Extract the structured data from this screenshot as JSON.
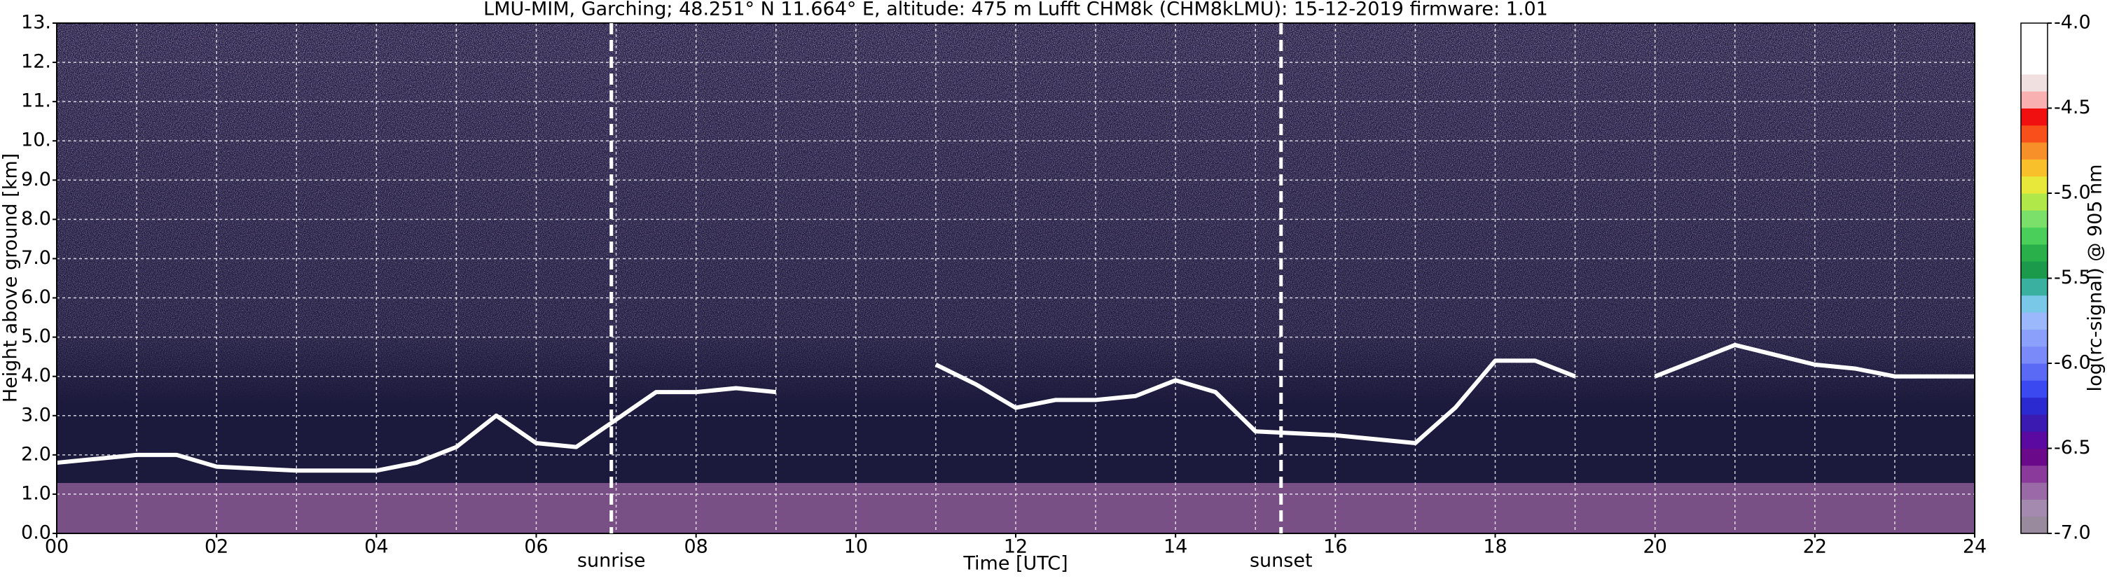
{
  "chart_data": {
    "type": "ceilometer",
    "title": "LMU-MIM, Garching; 48.251° N 11.664° E, altitude: 475 m    Lufft CHM8k (CHM8kLMU): 15-12-2019    firmware: 1.01",
    "x_label": "Time [UTC]",
    "y_label": "Height above ground [km]",
    "xlim": [
      0,
      24
    ],
    "xticks": [
      {
        "value": 0,
        "label": "00"
      },
      {
        "value": 2,
        "label": "02"
      },
      {
        "value": 4,
        "label": "04"
      },
      {
        "value": 6,
        "label": "06"
      },
      {
        "value": 8,
        "label": "08"
      },
      {
        "value": 10,
        "label": "10"
      },
      {
        "value": 12,
        "label": "12"
      },
      {
        "value": 14,
        "label": "14"
      },
      {
        "value": 16,
        "label": "16"
      },
      {
        "value": 18,
        "label": "18"
      },
      {
        "value": 20,
        "label": "20"
      },
      {
        "value": 22,
        "label": "22"
      },
      {
        "value": 24,
        "label": "24"
      }
    ],
    "xminorticks": [
      1,
      3,
      5,
      7,
      9,
      11,
      13,
      15,
      17,
      19,
      21,
      23
    ],
    "ylim": [
      0,
      13
    ],
    "yticks": [
      {
        "value": 0,
        "label": "0.0"
      },
      {
        "value": 1,
        "label": "1.0"
      },
      {
        "value": 2,
        "label": "2.0"
      },
      {
        "value": 3,
        "label": "3.0"
      },
      {
        "value": 4,
        "label": "4.0"
      },
      {
        "value": 5,
        "label": "5.0"
      },
      {
        "value": 6,
        "label": "6.0"
      },
      {
        "value": 7,
        "label": "7.0"
      },
      {
        "value": 8,
        "label": "8.0"
      },
      {
        "value": 9,
        "label": "9.0"
      },
      {
        "value": 10,
        "label": "10."
      },
      {
        "value": 11,
        "label": "11."
      },
      {
        "value": 12,
        "label": "12."
      },
      {
        "value": 13,
        "label": "13."
      }
    ],
    "grid": true,
    "annotations": [
      {
        "text": "sunrise",
        "x": 6.94
      },
      {
        "text": "sunset",
        "x": 15.32
      }
    ],
    "layer": {
      "x": [
        0,
        0.5,
        1,
        1.5,
        2,
        3,
        4,
        4.5,
        5,
        5.5,
        6,
        6.5,
        7.5,
        8,
        8.5,
        9,
        10,
        11,
        11.5,
        12,
        12.5,
        13,
        13.5,
        14,
        14.5,
        15,
        16,
        16.5,
        17,
        17.5,
        18,
        18.5,
        19,
        19.5,
        20,
        21,
        22,
        22.5,
        23,
        24
      ],
      "values": [
        1.8,
        1.9,
        2.0,
        2.0,
        1.7,
        1.6,
        1.6,
        1.8,
        2.2,
        3.0,
        2.3,
        2.2,
        3.6,
        3.6,
        3.7,
        3.6,
        null,
        4.3,
        3.8,
        3.2,
        3.4,
        3.4,
        3.5,
        3.9,
        3.6,
        2.6,
        2.5,
        2.4,
        2.3,
        3.2,
        4.4,
        4.4,
        4.0,
        null,
        4.0,
        4.8,
        4.3,
        4.2,
        4.0,
        4.0
      ],
      "color": "#ffffff"
    },
    "colorbar": {
      "label": "log(rc-signal) @ 905 nm",
      "lim": [
        -7,
        -4
      ],
      "ticks": [
        {
          "value": -4.0,
          "label": "-4.0"
        },
        {
          "value": -4.5,
          "label": "-4.5"
        },
        {
          "value": -5.0,
          "label": "-5.0"
        },
        {
          "value": -5.5,
          "label": "-5.5"
        },
        {
          "value": -6.0,
          "label": "-6.0"
        },
        {
          "value": -6.5,
          "label": "-6.5"
        },
        {
          "value": -7.0,
          "label": "-7.0"
        }
      ],
      "colors": [
        "#9a8a9e",
        "#a58ab0",
        "#9a6aa6",
        "#8a3a9a",
        "#6a0a8a",
        "#5a0aa0",
        "#3a1ab0",
        "#2a2ad0",
        "#3a4af0",
        "#5a6af5",
        "#7a8af8",
        "#8aa0fa",
        "#9ab8fb",
        "#7ac8e8",
        "#3ab0a0",
        "#1a9a4a",
        "#2ab04a",
        "#4ad05a",
        "#7ae06a",
        "#b0e84a",
        "#e8e83a",
        "#f8c02a",
        "#f8902a",
        "#f8501a",
        "#f01010",
        "#f8b0b0",
        "#f0e0e0",
        "#ffffff",
        "#ffffff",
        "#ffffff"
      ]
    }
  }
}
